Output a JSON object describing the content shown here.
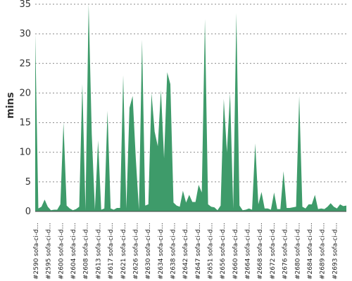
{
  "chart_data": {
    "type": "area",
    "ylabel": "mins",
    "xlabel": "",
    "ylim": [
      0,
      35
    ],
    "yticks": [
      0,
      5,
      10,
      15,
      20,
      25,
      30,
      35
    ],
    "grid": true,
    "series_color": "#3e9b6a",
    "x_tick_labels": [
      "#2590 sofa-ci-d…",
      "#2595 sofa-ci-d…",
      "#2600 sofa-ci-d…",
      "#2604 sofa-ci-d…",
      "#2608 sofa-ci-d…",
      "#2613 sofa-ci-d…",
      "#2617 sofa-ci-d…",
      "#2621 sofa-ci-d…",
      "#2626 sofa-ci-d…",
      "#2630 sofa-ci-d…",
      "#2634 sofa-ci-d…",
      "#2638 sofa-ci-d…",
      "#2642 sofa-ci-d…",
      "#2647 sofa-ci-d…",
      "#2651 sofa-ci-d…",
      "#2656 sofa-ci-d…",
      "#2660 sofa-ci-d…",
      "#2664 sofa-ci-d…",
      "#2668 sofa-ci-d…",
      "#2672 sofa-ci-d…",
      "#2676 sofa-ci-d…",
      "#2680 sofa-ci-d…",
      "#2684 sofa-ci-d…",
      "#2689 sofa-ci-d…",
      "#2693 sofa-ci-d…"
    ],
    "values": [
      30.0,
      0.5,
      0.8,
      2.0,
      0.8,
      0.2,
      0.3,
      0.3,
      1.2,
      15.0,
      1.0,
      0.5,
      0.2,
      0.4,
      0.8,
      21.5,
      0.3,
      35.0,
      13.0,
      0.3,
      12.0,
      0.3,
      0.5,
      17.0,
      0.5,
      0.3,
      0.6,
      0.6,
      23.0,
      0.5,
      17.5,
      19.5,
      9.0,
      0.3,
      29.0,
      1.0,
      1.2,
      20.0,
      13.5,
      11.0,
      20.5,
      9.0,
      23.5,
      21.5,
      1.5,
      1.0,
      0.8,
      3.5,
      1.5,
      2.8,
      1.6,
      1.6,
      4.5,
      3.2,
      32.5,
      1.2,
      0.8,
      0.7,
      0.2,
      1.0,
      19.0,
      10.0,
      20.0,
      0.5,
      33.5,
      1.0,
      0.2,
      0.3,
      0.5,
      0.3,
      11.5,
      1.2,
      3.3,
      0.5,
      0.5,
      0.3,
      3.2,
      0.4,
      0.4,
      6.8,
      0.6,
      0.6,
      0.7,
      0.8,
      19.5,
      0.8,
      0.5,
      1.2,
      1.2,
      2.8,
      0.4,
      0.5,
      0.4,
      0.8,
      1.4,
      0.8,
      0.5,
      1.2,
      0.9,
      1.0
    ]
  }
}
